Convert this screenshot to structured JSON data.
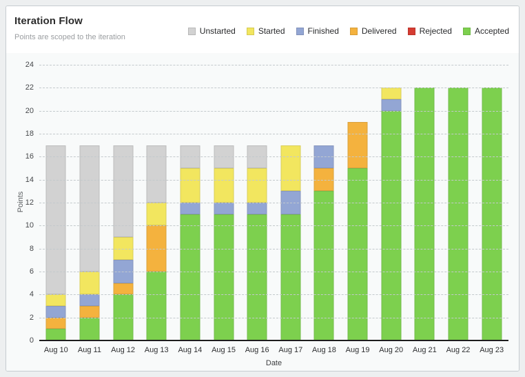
{
  "card": {
    "title": "Iteration Flow",
    "subtitle": "Points are scoped to the iteration"
  },
  "legend": [
    {
      "id": "unstarted",
      "label": "Unstarted",
      "color": "#d2d2d2"
    },
    {
      "id": "started",
      "label": "Started",
      "color": "#f2e65f"
    },
    {
      "id": "finished",
      "label": "Finished",
      "color": "#93a6d4"
    },
    {
      "id": "delivered",
      "label": "Delivered",
      "color": "#f4b23e"
    },
    {
      "id": "rejected",
      "label": "Rejected",
      "color": "#d53c32"
    },
    {
      "id": "accepted",
      "label": "Accepted",
      "color": "#7dd04e"
    }
  ],
  "chart_data": {
    "type": "bar",
    "stacked": true,
    "title": "Iteration Flow",
    "xlabel": "Date",
    "ylabel": "Points",
    "ylim": [
      0,
      24
    ],
    "ytick_step": 2,
    "grid": "horizontal-dashed",
    "legend_position": "top-right",
    "categories": [
      "Aug 10",
      "Aug 11",
      "Aug 12",
      "Aug 13",
      "Aug 14",
      "Aug 15",
      "Aug 16",
      "Aug 17",
      "Aug 18",
      "Aug 19",
      "Aug 20",
      "Aug 21",
      "Aug 22",
      "Aug 23"
    ],
    "stack_order_bottom_to_top": [
      "Accepted",
      "Rejected",
      "Delivered",
      "Finished",
      "Started",
      "Unstarted"
    ],
    "series": [
      {
        "name": "Accepted",
        "color": "#7dd04e",
        "values": [
          1,
          2,
          4,
          6,
          11,
          11,
          11,
          11,
          13,
          15,
          20,
          22,
          22,
          22
        ]
      },
      {
        "name": "Rejected",
        "color": "#d53c32",
        "values": [
          0,
          0,
          0,
          0,
          0,
          0,
          0,
          0,
          0,
          0,
          0,
          0,
          0,
          0
        ]
      },
      {
        "name": "Delivered",
        "color": "#f4b23e",
        "values": [
          1,
          1,
          1,
          4,
          0,
          0,
          0,
          0,
          2,
          4,
          0,
          0,
          0,
          0
        ]
      },
      {
        "name": "Finished",
        "color": "#93a6d4",
        "values": [
          1,
          1,
          2,
          0,
          1,
          1,
          1,
          2,
          2,
          0,
          1,
          0,
          0,
          0
        ]
      },
      {
        "name": "Started",
        "color": "#f2e65f",
        "values": [
          1,
          2,
          2,
          2,
          3,
          3,
          3,
          4,
          0,
          0,
          1,
          0,
          0,
          0
        ]
      },
      {
        "name": "Unstarted",
        "color": "#d2d2d2",
        "values": [
          13,
          11,
          8,
          5,
          2,
          2,
          2,
          0,
          0,
          0,
          0,
          0,
          0,
          0
        ]
      }
    ],
    "totals": [
      17,
      17,
      17,
      17,
      17,
      17,
      17,
      17,
      17,
      19,
      22,
      22,
      22,
      22
    ]
  }
}
